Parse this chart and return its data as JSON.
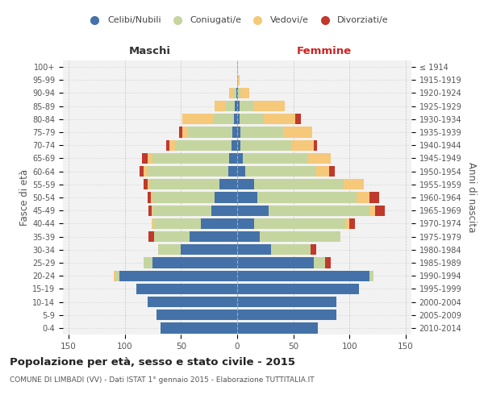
{
  "age_groups_bottom_to_top": [
    "0-4",
    "5-9",
    "10-14",
    "15-19",
    "20-24",
    "25-29",
    "30-34",
    "35-39",
    "40-44",
    "45-49",
    "50-54",
    "55-59",
    "60-64",
    "65-69",
    "70-74",
    "75-79",
    "80-84",
    "85-89",
    "90-94",
    "95-99",
    "100+"
  ],
  "birth_years_bottom_to_top": [
    "2010-2014",
    "2005-2009",
    "2000-2004",
    "1995-1999",
    "1990-1994",
    "1985-1989",
    "1980-1984",
    "1975-1979",
    "1970-1974",
    "1965-1969",
    "1960-1964",
    "1955-1959",
    "1950-1954",
    "1945-1949",
    "1940-1944",
    "1935-1939",
    "1930-1934",
    "1925-1929",
    "1920-1924",
    "1915-1919",
    "≤ 1914"
  ],
  "male_celibe": [
    68,
    72,
    80,
    90,
    105,
    75,
    50,
    42,
    32,
    23,
    20,
    16,
    8,
    7,
    5,
    4,
    3,
    2,
    1,
    0,
    0
  ],
  "male_coniugato": [
    0,
    0,
    0,
    0,
    3,
    8,
    20,
    32,
    42,
    52,
    55,
    62,
    72,
    68,
    50,
    40,
    18,
    8,
    2,
    0,
    0
  ],
  "male_vedovo": [
    0,
    0,
    0,
    0,
    2,
    0,
    0,
    0,
    2,
    1,
    2,
    2,
    3,
    5,
    5,
    5,
    28,
    10,
    4,
    0,
    0
  ],
  "male_divorziato": [
    0,
    0,
    0,
    0,
    0,
    0,
    0,
    5,
    0,
    3,
    3,
    3,
    4,
    5,
    3,
    3,
    0,
    0,
    0,
    0,
    0
  ],
  "female_celibe": [
    72,
    88,
    88,
    108,
    118,
    68,
    30,
    20,
    15,
    28,
    18,
    15,
    7,
    5,
    3,
    3,
    2,
    2,
    1,
    0,
    0
  ],
  "female_coniugato": [
    0,
    0,
    0,
    0,
    3,
    10,
    35,
    72,
    82,
    90,
    88,
    80,
    63,
    58,
    45,
    38,
    22,
    12,
    2,
    0,
    0
  ],
  "female_vedovo": [
    0,
    0,
    0,
    0,
    0,
    0,
    0,
    0,
    3,
    5,
    12,
    18,
    12,
    20,
    20,
    26,
    28,
    28,
    8,
    2,
    1
  ],
  "female_divorziato": [
    0,
    0,
    0,
    0,
    0,
    5,
    5,
    0,
    5,
    8,
    8,
    0,
    5,
    0,
    3,
    0,
    5,
    0,
    0,
    0,
    0
  ],
  "color_celibe": "#4472a8",
  "color_coniugato": "#c5d5a0",
  "color_vedovo": "#f5c87a",
  "color_divorziato": "#c0392b",
  "title": "Popolazione per età, sesso e stato civile - 2015",
  "subtitle": "COMUNE DI LIMBADI (VV) - Dati ISTAT 1° gennaio 2015 - Elaborazione TUTTITALIA.IT",
  "xlabel_left": "Maschi",
  "xlabel_right": "Femmine",
  "ylabel_left": "Fasce di età",
  "ylabel_right": "Anni di nascita",
  "xlim": 155,
  "bg_color": "#f2f2f2",
  "grid_color": "#bbbbbb",
  "legend_labels": [
    "Celibi/Nubili",
    "Coniugati/e",
    "Vedovi/e",
    "Divorziati/e"
  ]
}
